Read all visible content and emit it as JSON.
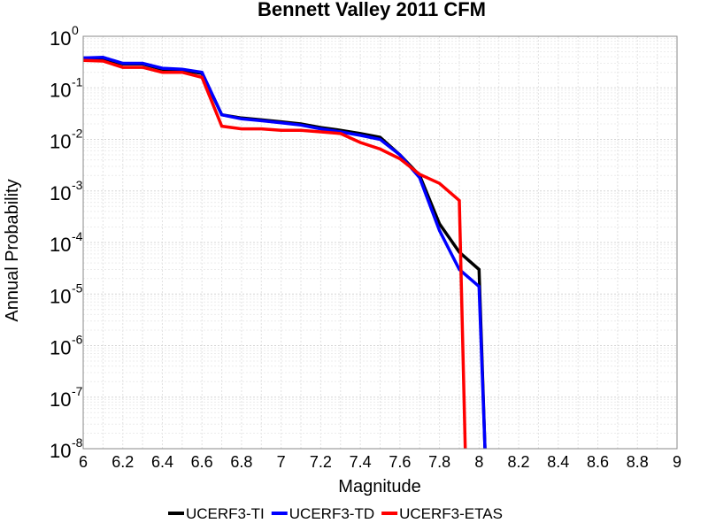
{
  "chart_data": {
    "type": "line",
    "title": "Bennett Valley 2011 CFM",
    "xlabel": "Magnitude",
    "ylabel": "Annual Probability",
    "xlim": [
      6,
      9
    ],
    "ylim": [
      1e-08,
      1
    ],
    "yscale": "log",
    "xticks": [
      "6",
      "6.2",
      "6.4",
      "6.6",
      "6.8",
      "7",
      "7.2",
      "7.4",
      "7.6",
      "7.8",
      "8",
      "8.2",
      "8.4",
      "8.6",
      "8.8",
      "9"
    ],
    "ytick_exponents": [
      "0",
      "-1",
      "-2",
      "-3",
      "-4",
      "-5",
      "-6",
      "-7",
      "-8"
    ],
    "ytick_base": "10",
    "grid": true,
    "legend_position": "bottom",
    "series": [
      {
        "name": "UCERF3-TI",
        "color": "#000000",
        "x": [
          6.0,
          6.1,
          6.2,
          6.3,
          6.4,
          6.5,
          6.6,
          6.7,
          6.8,
          6.9,
          7.0,
          7.1,
          7.2,
          7.3,
          7.4,
          7.5,
          7.6,
          7.7,
          7.8,
          7.9,
          8.0,
          8.03
        ],
        "y": [
          0.38,
          0.37,
          0.29,
          0.29,
          0.23,
          0.22,
          0.19,
          0.03,
          0.026,
          0.024,
          0.022,
          0.02,
          0.017,
          0.015,
          0.013,
          0.011,
          0.005,
          0.002,
          0.00023,
          6.5e-05,
          3e-05,
          1e-08
        ]
      },
      {
        "name": "UCERF3-TD",
        "color": "#0000ff",
        "x": [
          6.0,
          6.1,
          6.2,
          6.3,
          6.4,
          6.5,
          6.6,
          6.7,
          6.8,
          6.9,
          7.0,
          7.1,
          7.2,
          7.3,
          7.4,
          7.5,
          7.6,
          7.7,
          7.8,
          7.9,
          8.0,
          8.03
        ],
        "y": [
          0.38,
          0.39,
          0.3,
          0.3,
          0.24,
          0.23,
          0.2,
          0.03,
          0.025,
          0.023,
          0.021,
          0.019,
          0.016,
          0.014,
          0.012,
          0.01,
          0.005,
          0.0018,
          0.00017,
          3e-05,
          1.4e-05,
          1e-08
        ]
      },
      {
        "name": "UCERF3-ETAS",
        "color": "#ff0000",
        "x": [
          6.0,
          6.1,
          6.2,
          6.3,
          6.4,
          6.5,
          6.6,
          6.7,
          6.8,
          6.9,
          7.0,
          7.1,
          7.2,
          7.3,
          7.4,
          7.5,
          7.6,
          7.7,
          7.8,
          7.9,
          7.93
        ],
        "y": [
          0.34,
          0.33,
          0.25,
          0.25,
          0.2,
          0.2,
          0.16,
          0.018,
          0.016,
          0.016,
          0.015,
          0.015,
          0.014,
          0.013,
          0.0087,
          0.0065,
          0.0042,
          0.0021,
          0.0014,
          0.00065,
          1e-08
        ]
      }
    ]
  }
}
